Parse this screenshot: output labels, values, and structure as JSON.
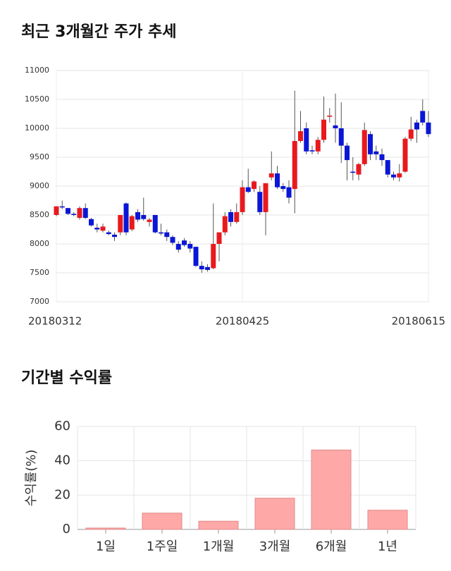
{
  "chart_data": [
    {
      "type": "candlestick",
      "title": "최근 3개월간 주가 추세",
      "categories": [
        "20180312",
        null,
        null,
        null,
        null,
        null,
        null,
        null,
        null,
        null,
        null,
        null,
        null,
        null,
        null,
        null,
        null,
        null,
        null,
        null,
        null,
        null,
        null,
        null,
        null,
        null,
        null,
        null,
        null,
        null,
        null,
        null,
        "20180425",
        null,
        null,
        null,
        null,
        null,
        null,
        null,
        null,
        null,
        null,
        null,
        null,
        null,
        null,
        null,
        null,
        null,
        null,
        null,
        null,
        null,
        null,
        null,
        null,
        null,
        null,
        null,
        null,
        null,
        null,
        null,
        "20180615"
      ],
      "open": [
        8500,
        8650,
        8620,
        8520,
        8450,
        8620,
        8430,
        8280,
        8230,
        8200,
        8160,
        8200,
        8700,
        8250,
        8550,
        8500,
        8380,
        8500,
        8200,
        8200,
        8120,
        8000,
        8060,
        8000,
        7950,
        7620,
        7600,
        7580,
        8000,
        8200,
        8550,
        8380,
        8550,
        8980,
        8950,
        8900,
        8550,
        9150,
        9220,
        9000,
        8980,
        8950,
        9780,
        10000,
        9620,
        9600,
        9800,
        10200,
        10050,
        10000,
        9700,
        9250,
        9200,
        9380,
        9900,
        9600,
        9550,
        9450,
        9200,
        9150,
        9250,
        9820,
        10100,
        10300,
        10100
      ],
      "high": [
        8650,
        8750,
        8620,
        8550,
        8650,
        8700,
        8450,
        8350,
        8350,
        8230,
        8200,
        8500,
        8720,
        8500,
        8600,
        8800,
        8450,
        8500,
        8350,
        8250,
        8150,
        8050,
        8100,
        8050,
        7950,
        7700,
        7650,
        8700,
        8200,
        8550,
        8600,
        8700,
        9100,
        9300,
        9100,
        9000,
        9050,
        9600,
        9350,
        9050,
        9100,
        10650,
        10300,
        10100,
        9700,
        9850,
        10550,
        10350,
        10600,
        10450,
        9750,
        9500,
        9400,
        10100,
        9950,
        9700,
        9650,
        9450,
        9250,
        9380,
        9850,
        10200,
        10150,
        10500,
        10300
      ],
      "low": [
        8480,
        8600,
        8500,
        8480,
        8420,
        8430,
        8300,
        8200,
        8200,
        8150,
        8050,
        8150,
        8150,
        8220,
        8380,
        8400,
        8300,
        8180,
        8150,
        8050,
        7980,
        7850,
        7950,
        7850,
        7600,
        7500,
        7520,
        7560,
        7700,
        8150,
        8300,
        8350,
        8500,
        8880,
        8900,
        8500,
        8150,
        9100,
        8950,
        8900,
        8700,
        8530,
        9750,
        9550,
        9550,
        9550,
        9750,
        10100,
        9750,
        9400,
        9100,
        9100,
        9100,
        9350,
        9450,
        9450,
        9350,
        9150,
        9100,
        9080,
        9230,
        9780,
        9750,
        10050,
        9850
      ],
      "close": [
        8650,
        8630,
        8520,
        8500,
        8620,
        8450,
        8320,
        8250,
        8300,
        8170,
        8120,
        8500,
        8200,
        8480,
        8420,
        8430,
        8420,
        8200,
        8180,
        8120,
        8020,
        7900,
        7980,
        7920,
        7620,
        7560,
        7550,
        8000,
        8200,
        8480,
        8380,
        8550,
        8980,
        8900,
        9080,
        8550,
        9050,
        9220,
        8980,
        8950,
        8800,
        9780,
        9950,
        9600,
        9600,
        9800,
        10150,
        10220,
        10000,
        9700,
        9450,
        9230,
        9380,
        9970,
        9550,
        9550,
        9450,
        9200,
        9150,
        9220,
        9820,
        9980,
        9980,
        10100,
        9900
      ],
      "up_color": "#e8191e",
      "down_color": "#0a16d6",
      "ylim": [
        7000,
        11000
      ],
      "yticks": [
        7000,
        7500,
        8000,
        8500,
        9000,
        9500,
        10000,
        10500,
        11000
      ],
      "grid": true
    },
    {
      "type": "bar",
      "title": "기간별 수익률",
      "ylabel": "수익률(%)",
      "categories": [
        "1일",
        "1주일",
        "1개월",
        "3개월",
        "6개월",
        "1년"
      ],
      "values": [
        0.8,
        9.5,
        4.8,
        18.2,
        46.3,
        11.2
      ],
      "color": "#ffa8a8",
      "ylim": [
        0,
        60
      ],
      "yticks": [
        0,
        20,
        40,
        60
      ],
      "grid": true
    }
  ]
}
